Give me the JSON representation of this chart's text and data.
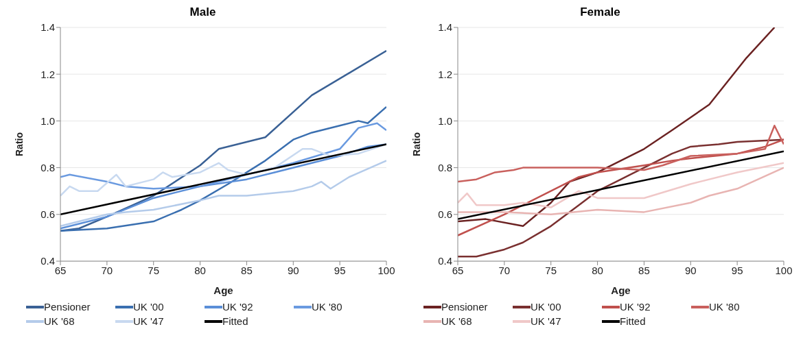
{
  "chart_data": [
    {
      "type": "line",
      "title": "Male",
      "xlabel": "Age",
      "ylabel": "Ratio",
      "xlim": [
        65,
        100
      ],
      "xticks": [
        65,
        70,
        75,
        80,
        85,
        90,
        95,
        100
      ],
      "ylim": [
        0.4,
        1.4
      ],
      "yticks": [
        0.4,
        0.6,
        0.8,
        {
          "value": 1,
          "label": "1.0"
        },
        1.2,
        1.4
      ],
      "grid": "y",
      "legend": "bottom",
      "marker": "none",
      "line_style": "solid",
      "series": [
        {
          "name": "Pensioner",
          "color": "#3a6195",
          "x": [
            65,
            67,
            70,
            75,
            80,
            82,
            87,
            92,
            100
          ],
          "values": [
            0.53,
            0.54,
            0.59,
            0.68,
            0.81,
            0.88,
            0.93,
            1.11,
            1.3
          ]
        },
        {
          "name": "UK '00",
          "color": "#3a6fb0",
          "x": [
            65,
            70,
            75,
            78,
            80,
            83,
            87,
            90,
            92,
            95,
            97,
            98,
            100
          ],
          "values": [
            0.53,
            0.54,
            0.57,
            0.62,
            0.66,
            0.73,
            0.83,
            0.92,
            0.95,
            0.98,
            1.0,
            0.99,
            1.06
          ]
        },
        {
          "name": "UK '92",
          "color": "#5b8fd8",
          "x": [
            65,
            70,
            75,
            80,
            85,
            88,
            92,
            95,
            98,
            100
          ],
          "values": [
            0.54,
            0.59,
            0.67,
            0.72,
            0.75,
            0.78,
            0.82,
            0.85,
            0.89,
            0.9
          ]
        },
        {
          "name": "UK '80",
          "color": "#6a9ae0",
          "x": [
            65,
            66,
            70,
            72,
            75,
            80,
            85,
            88,
            90,
            95,
            97,
            99,
            100
          ],
          "values": [
            0.76,
            0.77,
            0.74,
            0.72,
            0.71,
            0.72,
            0.77,
            0.8,
            0.82,
            0.88,
            0.97,
            0.99,
            0.96
          ]
        },
        {
          "name": "UK '68",
          "color": "#b4cbea",
          "x": [
            65,
            70,
            72,
            75,
            80,
            82,
            85,
            90,
            92,
            93,
            94,
            96,
            100
          ],
          "values": [
            0.55,
            0.6,
            0.61,
            0.62,
            0.66,
            0.68,
            0.68,
            0.7,
            0.72,
            0.74,
            0.71,
            0.76,
            0.83
          ]
        },
        {
          "name": "UK '47",
          "color": "#c8d9f0",
          "x": [
            65,
            66,
            67,
            69,
            71,
            72,
            75,
            76,
            77,
            80,
            82,
            83,
            85,
            88,
            91,
            92,
            94,
            97,
            100
          ],
          "values": [
            0.68,
            0.72,
            0.7,
            0.7,
            0.77,
            0.72,
            0.75,
            0.78,
            0.76,
            0.78,
            0.82,
            0.79,
            0.77,
            0.8,
            0.88,
            0.88,
            0.85,
            0.86,
            0.9
          ]
        },
        {
          "name": "Fitted",
          "color": "#000000",
          "x": [
            65,
            100
          ],
          "values": [
            0.6,
            0.9
          ]
        }
      ]
    },
    {
      "type": "line",
      "title": "Female",
      "xlabel": "Age",
      "ylabel": "Ratio",
      "xlim": [
        65,
        100
      ],
      "xticks": [
        65,
        70,
        75,
        80,
        85,
        90,
        95,
        100
      ],
      "ylim": [
        0.4,
        1.4
      ],
      "yticks": [
        0.4,
        0.6,
        0.8,
        {
          "value": 1,
          "label": "1.0"
        },
        1.2,
        1.4
      ],
      "grid": "y",
      "legend": "bottom",
      "marker": "none",
      "line_style": "solid",
      "series": [
        {
          "name": "Pensioner",
          "color": "#6b2222",
          "x": [
            65,
            68,
            72,
            75,
            77,
            80,
            85,
            88,
            92,
            96,
            99
          ],
          "values": [
            0.57,
            0.58,
            0.55,
            0.65,
            0.74,
            0.78,
            0.88,
            0.96,
            1.07,
            1.27,
            1.4
          ]
        },
        {
          "name": "UK '00",
          "color": "#7a3030",
          "x": [
            65,
            67,
            70,
            72,
            75,
            78,
            80,
            82,
            85,
            88,
            90,
            93,
            95,
            100
          ],
          "values": [
            0.42,
            0.42,
            0.45,
            0.48,
            0.55,
            0.64,
            0.7,
            0.74,
            0.8,
            0.86,
            0.89,
            0.9,
            0.91,
            0.92
          ]
        },
        {
          "name": "UK '92",
          "color": "#c0504d",
          "x": [
            65,
            70,
            75,
            78,
            80,
            85,
            88,
            90,
            95,
            98,
            100
          ],
          "values": [
            0.51,
            0.6,
            0.7,
            0.76,
            0.78,
            0.81,
            0.83,
            0.84,
            0.86,
            0.89,
            0.92
          ]
        },
        {
          "name": "UK '80",
          "color": "#c9605d",
          "x": [
            65,
            67,
            69,
            71,
            72,
            80,
            85,
            87,
            90,
            95,
            98,
            99,
            100
          ],
          "values": [
            0.74,
            0.75,
            0.78,
            0.79,
            0.8,
            0.8,
            0.79,
            0.81,
            0.85,
            0.86,
            0.88,
            0.98,
            0.9
          ]
        },
        {
          "name": "UK '68",
          "color": "#e8b4b2",
          "x": [
            65,
            70,
            75,
            80,
            85,
            90,
            92,
            95,
            100
          ],
          "values": [
            0.61,
            0.61,
            0.6,
            0.62,
            0.61,
            0.65,
            0.68,
            0.71,
            0.8
          ]
        },
        {
          "name": "UK '47",
          "color": "#f0c8c8",
          "x": [
            65,
            66,
            67,
            70,
            72,
            75,
            78,
            80,
            85,
            90,
            95,
            100
          ],
          "values": [
            0.65,
            0.69,
            0.64,
            0.64,
            0.65,
            0.63,
            0.7,
            0.67,
            0.67,
            0.73,
            0.78,
            0.82
          ]
        },
        {
          "name": "Fitted",
          "color": "#000000",
          "x": [
            65,
            100
          ],
          "values": [
            0.58,
            0.87
          ]
        }
      ]
    }
  ]
}
